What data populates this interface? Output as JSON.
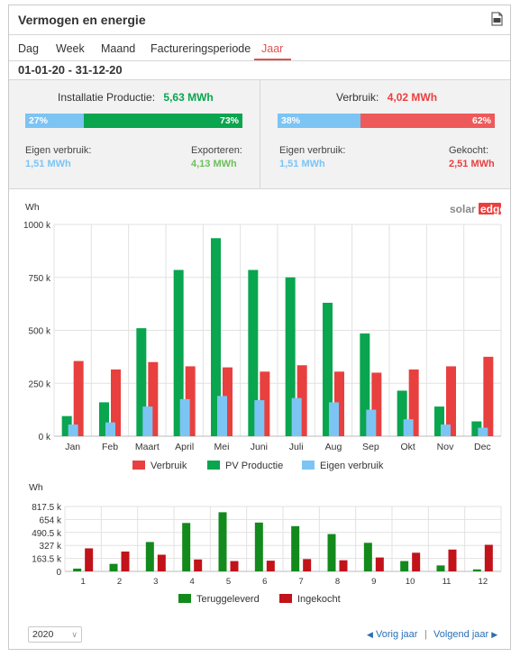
{
  "header": {
    "title": "Vermogen en energie",
    "export_icon": "csv-export-icon"
  },
  "tabs": [
    {
      "label": "Dag",
      "active": false
    },
    {
      "label": "Week",
      "active": false
    },
    {
      "label": "Maand",
      "active": false
    },
    {
      "label": "Factureringsperiode",
      "active": false
    },
    {
      "label": "Jaar",
      "active": true
    }
  ],
  "date_range": "01-01-20 - 31-12-20",
  "production": {
    "title": "Installatie Productie:",
    "total": "5,63 MWh",
    "self_pct": 27,
    "self_pct_label": "27%",
    "export_pct": 73,
    "export_pct_label": "73%",
    "self_label": "Eigen verbruik:",
    "self_value": "1,51 MWh",
    "export_label": "Exporteren:",
    "export_value": "4,13 MWh"
  },
  "consumption": {
    "title": "Verbruik:",
    "total": "4,02 MWh",
    "self_pct": 38,
    "self_pct_label": "38%",
    "bought_pct": 62,
    "bought_pct_label": "62%",
    "self_label": "Eigen verbruik:",
    "self_value": "1,51 MWh",
    "bought_label": "Gekocht:",
    "bought_value": "2,51 MWh"
  },
  "colors": {
    "green": "#0aa54f",
    "red": "#e8403f",
    "blue": "#7cc4f4",
    "dark_green": "#138a1c",
    "dark_red": "#c2121a",
    "link": "#2a6fb5"
  },
  "brand": {
    "solar": "solar",
    "edge": "edge"
  },
  "chart_data": [
    {
      "type": "bar",
      "ylabel": "Wh",
      "ylim": [
        0,
        1000000
      ],
      "yticks": [
        "0 k",
        "250 k",
        "500 k",
        "750 k",
        "1000 k"
      ],
      "ytick_values": [
        0,
        250000,
        500000,
        750000,
        1000000
      ],
      "categories": [
        "Jan",
        "Feb",
        "Maart",
        "April",
        "Mei",
        "Juni",
        "Juli",
        "Aug",
        "Sep",
        "Okt",
        "Nov",
        "Dec"
      ],
      "series": [
        {
          "name": "PV Productie",
          "color": "#0aa54f",
          "values": [
            95000,
            160000,
            510000,
            785000,
            935000,
            785000,
            750000,
            630000,
            485000,
            215000,
            140000,
            70000
          ]
        },
        {
          "name": "Verbruik",
          "color": "#e8403f",
          "values": [
            355000,
            315000,
            350000,
            330000,
            325000,
            305000,
            335000,
            305000,
            300000,
            315000,
            330000,
            375000
          ]
        },
        {
          "name": "Eigen verbruik",
          "color": "#7cc4f4",
          "values": [
            55000,
            65000,
            140000,
            175000,
            190000,
            170000,
            180000,
            160000,
            125000,
            80000,
            55000,
            40000
          ]
        }
      ],
      "legend": [
        "Verbruik",
        "PV Productie",
        "Eigen verbruik"
      ],
      "legend_position": "bottom"
    },
    {
      "type": "bar",
      "ylabel": "Wh",
      "ylim": [
        0,
        817500
      ],
      "yticks": [
        "0",
        "163.5 k",
        "327 k",
        "490.5 k",
        "654 k",
        "817.5 k"
      ],
      "ytick_values": [
        0,
        163500,
        327000,
        490500,
        654000,
        817500
      ],
      "categories": [
        "1",
        "2",
        "3",
        "4",
        "5",
        "6",
        "7",
        "8",
        "9",
        "10",
        "11",
        "12"
      ],
      "series": [
        {
          "name": "Teruggeleverd",
          "color": "#138a1c",
          "values": [
            35000,
            95000,
            370000,
            610000,
            745000,
            615000,
            570000,
            470000,
            360000,
            130000,
            75000,
            25000
          ]
        },
        {
          "name": "Ingekocht",
          "color": "#c2121a",
          "values": [
            290000,
            250000,
            210000,
            150000,
            130000,
            135000,
            155000,
            140000,
            175000,
            235000,
            275000,
            335000
          ]
        }
      ],
      "legend": [
        "Teruggeleverd",
        "Ingekocht"
      ],
      "legend_position": "bottom"
    }
  ],
  "footer": {
    "year": "2020",
    "prev_label": "Vorig jaar",
    "next_label": "Volgend jaar",
    "separator": "|"
  }
}
